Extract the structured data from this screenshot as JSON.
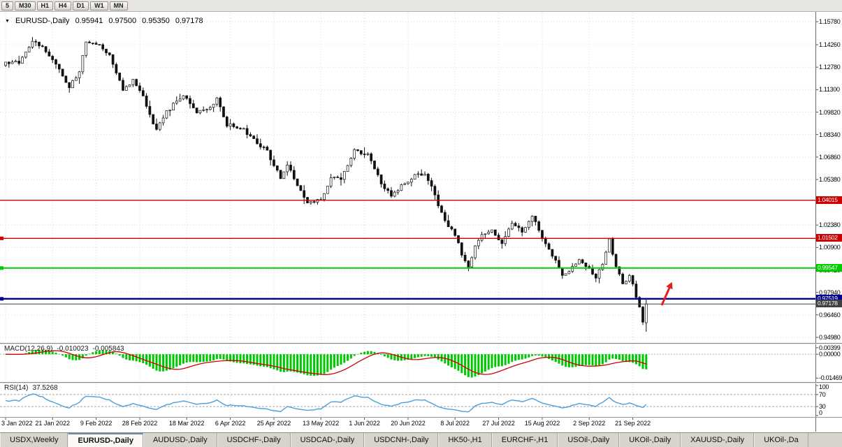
{
  "toolbar": {
    "timeframes": [
      "5",
      "M30",
      "H1",
      "H4",
      "D1",
      "W1",
      "MN"
    ]
  },
  "chart": {
    "title": "EURUSD-,Daily",
    "ohlc": {
      "open": "0.95941",
      "high": "0.97500",
      "low": "0.95350",
      "close": "0.97178"
    },
    "price_axis_labels": [
      "1.15780",
      "1.14260",
      "1.12780",
      "1.11300",
      "1.09820",
      "1.08340",
      "1.06860",
      "1.05380",
      "1.02380",
      "1.00900",
      "0.99420",
      "0.97940",
      "0.96460",
      "0.94980"
    ],
    "date_axis_labels": [
      "3 Jan 2022",
      "21 Jan 2022",
      "9 Feb 2022",
      "28 Feb 2022",
      "18 Mar 2022",
      "6 Apr 2022",
      "25 Apr 2022",
      "13 May 2022",
      "1 Jun 2022",
      "20 Jun 2022",
      "8 Jul 2022",
      "27 Jul 2022",
      "15 Aug 2022",
      "2 Sep 2022",
      "21 Sep 2022"
    ],
    "hlines": [
      {
        "name": "resistance-upper",
        "price": 1.04015,
        "label": "1.04015",
        "color": "#CC0000",
        "width": 1.4,
        "handle": false
      },
      {
        "name": "resistance-lower",
        "price": 1.01502,
        "label": "1.01502",
        "color": "#CC0000",
        "width": 1.4,
        "handle": true
      },
      {
        "name": "support-green",
        "price": 0.99547,
        "label": "0.99547",
        "color": "#00CC00",
        "width": 2,
        "handle": true
      },
      {
        "name": "support-blue",
        "price": 0.97519,
        "label": "0.97519",
        "color": "#000090",
        "width": 2.4,
        "handle": true
      },
      {
        "name": "current-close",
        "price": 0.97178,
        "label": "0.97178",
        "color": "#404040",
        "width": 1,
        "handle": false
      }
    ],
    "arrow_color": "#E02020"
  },
  "macd": {
    "name": "MACD(12,26,9)",
    "main": "-0.010023",
    "signal": "-0.005843",
    "axis_labels": [
      "0.00399",
      "0.00000",
      "-0.01469"
    ],
    "histogram_color": "#00C800",
    "signal_color": "#CC0000"
  },
  "rsi": {
    "name": "RSI(14)",
    "value": "37.5268",
    "axis_labels": [
      "100",
      "70",
      "30",
      "0"
    ],
    "levels": [
      70,
      30
    ],
    "line_color": "#4C9FD8"
  },
  "tabs": {
    "items": [
      "USDX,Weekly",
      "EURUSD-,Daily",
      "AUDUSD-,Daily",
      "USDCHF-,Daily",
      "USDCAD-,Daily",
      "USDCNH-,Daily",
      "HK50-,H1",
      "EURCHF-,H1",
      "USOil-,Daily",
      "UKOil-,Daily",
      "XAUUSD-,Daily",
      "UKOil-,Da"
    ],
    "active_index": 1
  },
  "chart_data": {
    "type": "candlestick",
    "symbol": "EURUSD-",
    "timeframe": "Daily",
    "bars": 192,
    "last_bar": {
      "open": 0.95941,
      "high": 0.975,
      "low": 0.9535,
      "close": 0.97178
    },
    "price_range": {
      "top_label": 1.1578,
      "bottom_label": 0.9498
    },
    "date_tick_bars": [
      0,
      14,
      27,
      40,
      54,
      67,
      80,
      94,
      107,
      120,
      134,
      147,
      160,
      174,
      187
    ],
    "close_anchors": [
      [
        0,
        1.13
      ],
      [
        4,
        1.1312
      ],
      [
        8,
        1.1455
      ],
      [
        11,
        1.141
      ],
      [
        14,
        1.1338
      ],
      [
        19,
        1.1145
      ],
      [
        22,
        1.125
      ],
      [
        24,
        1.1448
      ],
      [
        28,
        1.1426
      ],
      [
        31,
        1.135
      ],
      [
        35,
        1.113
      ],
      [
        38,
        1.119
      ],
      [
        41,
        1.108
      ],
      [
        45,
        1.086
      ],
      [
        48,
        1.098
      ],
      [
        53,
        1.11
      ],
      [
        57,
        1.098
      ],
      [
        60,
        1.1
      ],
      [
        63,
        1.1067
      ],
      [
        66,
        1.09
      ],
      [
        70,
        1.088
      ],
      [
        73,
        1.083
      ],
      [
        78,
        1.072
      ],
      [
        82,
        1.055
      ],
      [
        84,
        1.064
      ],
      [
        87,
        1.051
      ],
      [
        90,
        1.038
      ],
      [
        94,
        1.041
      ],
      [
        97,
        1.055
      ],
      [
        100,
        1.0535
      ],
      [
        104,
        1.0735
      ],
      [
        108,
        1.07
      ],
      [
        112,
        1.052
      ],
      [
        115,
        1.042
      ],
      [
        118,
        1.05
      ],
      [
        122,
        1.056
      ],
      [
        125,
        1.0585
      ],
      [
        128,
        1.043
      ],
      [
        131,
        1.026
      ],
      [
        134,
        1.018
      ],
      [
        136,
        1.004
      ],
      [
        138,
        0.997
      ],
      [
        140,
        1.009
      ],
      [
        142,
        1.018
      ],
      [
        145,
        1.021
      ],
      [
        148,
        1.012
      ],
      [
        151,
        1.026
      ],
      [
        154,
        1.019
      ],
      [
        157,
        1.03
      ],
      [
        160,
        1.016
      ],
      [
        163,
        1.004
      ],
      [
        166,
        0.9905
      ],
      [
        169,
        0.996
      ],
      [
        171,
        1.0003
      ],
      [
        174,
        0.995
      ],
      [
        176,
        0.99
      ],
      [
        178,
        0.999
      ],
      [
        180,
        1.014
      ],
      [
        182,
        0.997
      ],
      [
        184,
        0.984
      ],
      [
        186,
        0.9895
      ],
      [
        187,
        0.984
      ],
      [
        188,
        0.975
      ],
      [
        189,
        0.969
      ],
      [
        190,
        0.961
      ],
      [
        191,
        0.9718
      ]
    ]
  }
}
